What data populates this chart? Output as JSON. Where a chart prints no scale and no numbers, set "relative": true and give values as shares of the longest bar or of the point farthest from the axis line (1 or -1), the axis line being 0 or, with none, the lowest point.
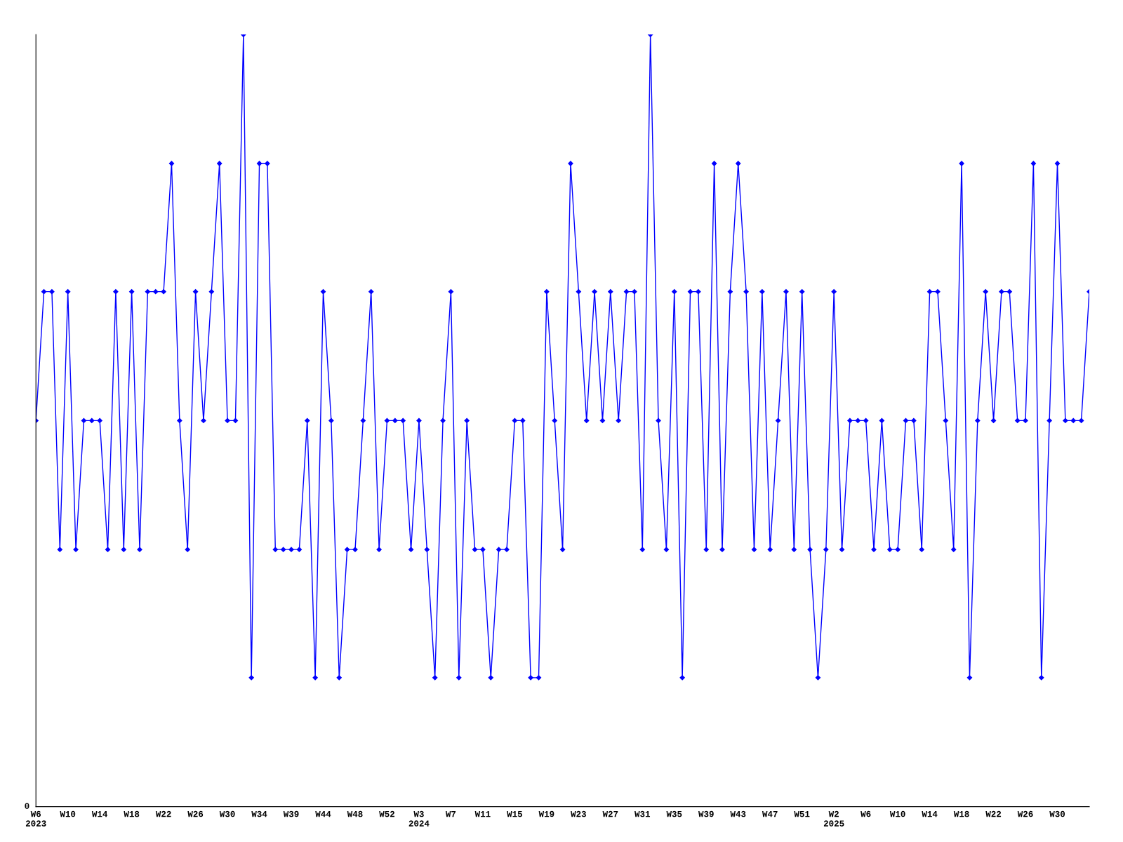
{
  "chart_data": {
    "type": "line",
    "relative": true,
    "color": "#0000ff",
    "marker": "diamond",
    "line_style": "solid",
    "grid": false,
    "legend": false,
    "annotations": [
      "0"
    ],
    "categories": [
      "W6\n2023",
      null,
      null,
      null,
      "W10",
      null,
      null,
      null,
      "W14",
      null,
      null,
      null,
      "W18",
      null,
      null,
      null,
      "W22",
      null,
      null,
      null,
      "W26",
      null,
      null,
      null,
      "W30",
      null,
      null,
      null,
      "W34",
      null,
      null,
      null,
      "W39",
      null,
      null,
      null,
      "W44",
      null,
      null,
      null,
      "W48",
      null,
      null,
      null,
      "W52",
      null,
      null,
      null,
      "W3\n2024",
      null,
      null,
      null,
      "W7",
      null,
      null,
      null,
      "W11",
      null,
      null,
      null,
      "W15",
      null,
      null,
      null,
      "W19",
      null,
      null,
      null,
      "W23",
      null,
      null,
      null,
      "W27",
      null,
      null,
      null,
      "W31",
      null,
      null,
      null,
      "W35",
      null,
      null,
      null,
      "W39",
      null,
      null,
      null,
      "W43",
      null,
      null,
      null,
      "W47",
      null,
      null,
      null,
      "W51",
      null,
      null,
      null,
      "W2\n2025",
      null,
      null,
      null,
      "W6",
      null,
      null,
      null,
      "W10",
      null,
      null,
      null,
      "W14",
      null,
      null,
      null,
      "W18",
      null,
      null,
      null,
      "W22",
      null,
      null,
      null,
      "W26",
      null,
      null,
      null,
      "W30",
      null,
      null,
      null,
      null
    ],
    "values": [
      0.5,
      0.667,
      0.667,
      0.333,
      0.667,
      0.333,
      0.5,
      0.5,
      0.5,
      0.333,
      0.667,
      0.333,
      0.667,
      0.333,
      0.667,
      0.667,
      0.667,
      0.833,
      0.5,
      0.333,
      0.667,
      0.5,
      0.667,
      0.833,
      0.5,
      0.5,
      1,
      0.167,
      0.833,
      0.833,
      0.333,
      0.333,
      0.333,
      0.333,
      0.5,
      0.167,
      0.667,
      0.5,
      0.167,
      0.333,
      0.333,
      0.5,
      0.667,
      0.333,
      0.5,
      0.5,
      0.5,
      0.333,
      0.5,
      0.333,
      0.167,
      0.5,
      0.667,
      0.167,
      0.5,
      0.333,
      0.333,
      0.167,
      0.333,
      0.333,
      0.5,
      0.5,
      0.167,
      0.167,
      0.667,
      0.5,
      0.333,
      0.833,
      0.667,
      0.5,
      0.667,
      0.5,
      0.667,
      0.5,
      0.667,
      0.667,
      0.333,
      1,
      0.5,
      0.333,
      0.667,
      0.167,
      0.667,
      0.667,
      0.333,
      0.833,
      0.333,
      0.667,
      0.833,
      0.667,
      0.333,
      0.667,
      0.333,
      0.5,
      0.667,
      0.333,
      0.667,
      0.333,
      0.167,
      0.333,
      0.667,
      0.333,
      0.5,
      0.5,
      0.5,
      0.333,
      0.5,
      0.333,
      0.333,
      0.5,
      0.5,
      0.333,
      0.667,
      0.667,
      0.5,
      0.333,
      0.833,
      0.167,
      0.5,
      0.667,
      0.5,
      0.667,
      0.667,
      0.5,
      0.5,
      0.833,
      0.167,
      0.5,
      0.833,
      0.5,
      0.5,
      0.5,
      0.667
    ]
  }
}
